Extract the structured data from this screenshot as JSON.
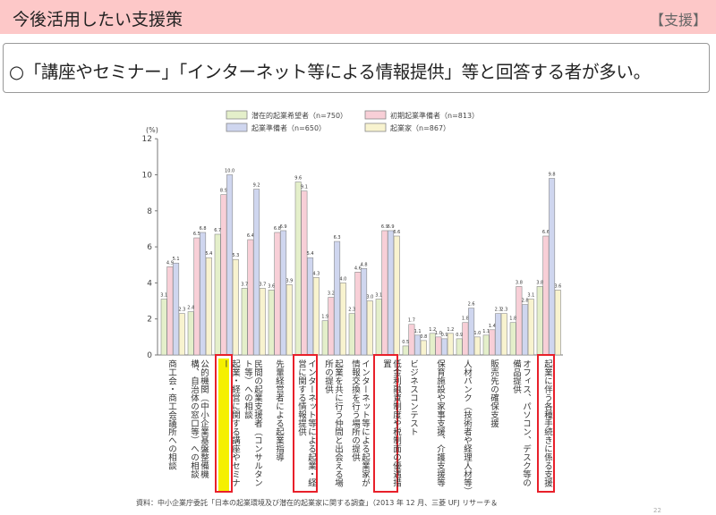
{
  "header": {
    "title": "今後活用したい支援策",
    "tag": "【支援】"
  },
  "summary": "○「講座やセミナー」「インターネット等による情報提供」等と回答する者が多い。",
  "chart_data": {
    "type": "bar",
    "ylabel": "(%)",
    "ylim": [
      0,
      12
    ],
    "yticks": [
      0,
      2,
      4,
      6,
      8,
      10,
      12
    ],
    "legend_position": "top",
    "categories": [
      "商工会・商工会議所への相談",
      "公的機関（中小企業基盤整備機構、自治体の窓口等）への相談",
      "起業・経営に関する講座やセミナー",
      "民間の起業支援者（コンサルタント等）への相談",
      "先輩経営者による起業指導",
      "インターネット等による起業・経営に関する情報提供",
      "起業を共に行う仲間と出会える場所の提供",
      "インターネット等による起業家が情報交換を行う場所の提供",
      "低金利融資制度や税制面の優遇措置",
      "ビジネスコンテスト",
      "保育施設や家事支援、介護支援等",
      "人材バンク（技術者や経理人材等）",
      "販売先の確保支援",
      "オフィス、パソコン、デスク等の備品提供",
      "起業に伴う各種手続きに係る支援"
    ],
    "highlighted_categories": [
      2,
      5,
      8,
      14
    ],
    "series": [
      {
        "name": "潜在的起業希望者（n=750）",
        "color": "#e4efca",
        "values": [
          3.1,
          2.4,
          6.7,
          3.7,
          3.6,
          9.6,
          1.9,
          2.3,
          3.1,
          0.5,
          1.2,
          0.9,
          1.1,
          1.8,
          3.8
        ]
      },
      {
        "name": "初期起業準備者（n=813）",
        "color": "#f8cfd7",
        "values": [
          4.9,
          6.5,
          8.9,
          6.4,
          6.8,
          9.1,
          3.2,
          4.6,
          6.9,
          1.7,
          1.0,
          1.8,
          1.4,
          3.8,
          6.6
        ]
      },
      {
        "name": "起業準備者（n=650）",
        "color": "#cfd6ef",
        "values": [
          5.1,
          6.8,
          10.0,
          9.2,
          6.9,
          5.4,
          6.3,
          4.8,
          6.9,
          1.1,
          0.9,
          2.6,
          2.3,
          2.8,
          9.8
        ]
      },
      {
        "name": "起業家（n=867）",
        "color": "#f8f3cf",
        "values": [
          2.3,
          5.4,
          5.3,
          3.7,
          3.9,
          4.3,
          4.0,
          3.0,
          6.6,
          0.8,
          1.2,
          1.0,
          2.3,
          3.1,
          3.6
        ]
      }
    ]
  },
  "source": "資料：中小企業庁委託「日本の起業環境及び潜在的起業家に関する調査」（2013 年 12 月、三菱 UFJ リサーチ＆",
  "page_number": "22"
}
